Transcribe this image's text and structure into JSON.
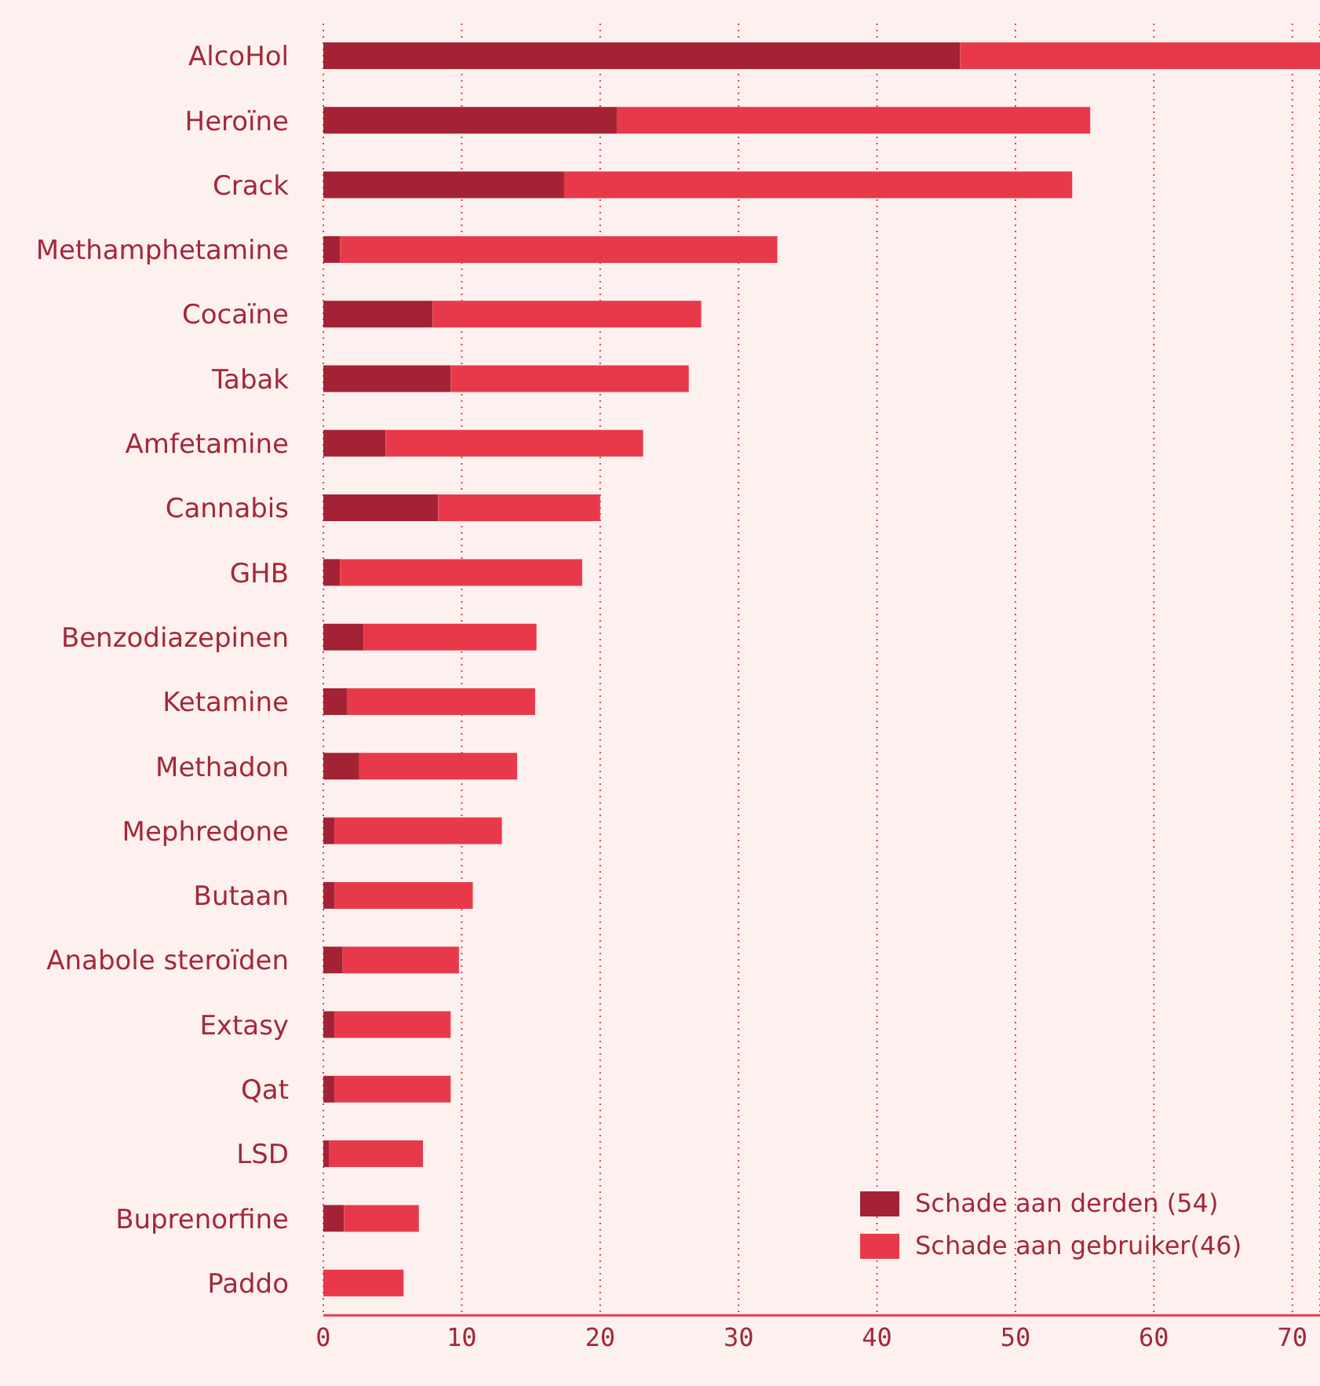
{
  "chart_data": {
    "type": "bar",
    "orientation": "horizontal",
    "stacked": true,
    "categories": [
      "AlcoHol",
      "Heroïne",
      "Crack",
      "Methamphetamine",
      "Cocaïne",
      "Tabak",
      "Amfetamine",
      "Cannabis",
      "GHB",
      "Benzodiazepinen",
      "Ketamine",
      "Methadon",
      "Mephredone",
      "Butaan",
      "Anabole steroïden",
      "Extasy",
      "Qat",
      "LSD",
      "Buprenorfine",
      "Paddo"
    ],
    "series": [
      {
        "name": "Schade aan derden (54)",
        "color": "#a32234",
        "values": [
          46,
          21.2,
          17.4,
          1.2,
          7.9,
          9.2,
          4.5,
          8.3,
          1.2,
          2.9,
          1.7,
          2.6,
          0.8,
          0.8,
          1.4,
          0.8,
          0.8,
          0.4,
          1.5,
          0
        ]
      },
      {
        "name": "Schade aan gebruiker(46)",
        "color": "#e8394b",
        "values": [
          26,
          34.2,
          36.7,
          31.6,
          19.4,
          17.2,
          18.6,
          11.7,
          17.5,
          12.5,
          13.6,
          11.4,
          12.1,
          10,
          8.4,
          8.4,
          8.4,
          6.8,
          5.4,
          5.8
        ]
      }
    ],
    "xlim": [
      0,
      72
    ],
    "xticks": [
      0,
      10,
      20,
      30,
      40,
      50,
      60,
      70
    ],
    "grid": "x",
    "legend": "bottom right"
  }
}
